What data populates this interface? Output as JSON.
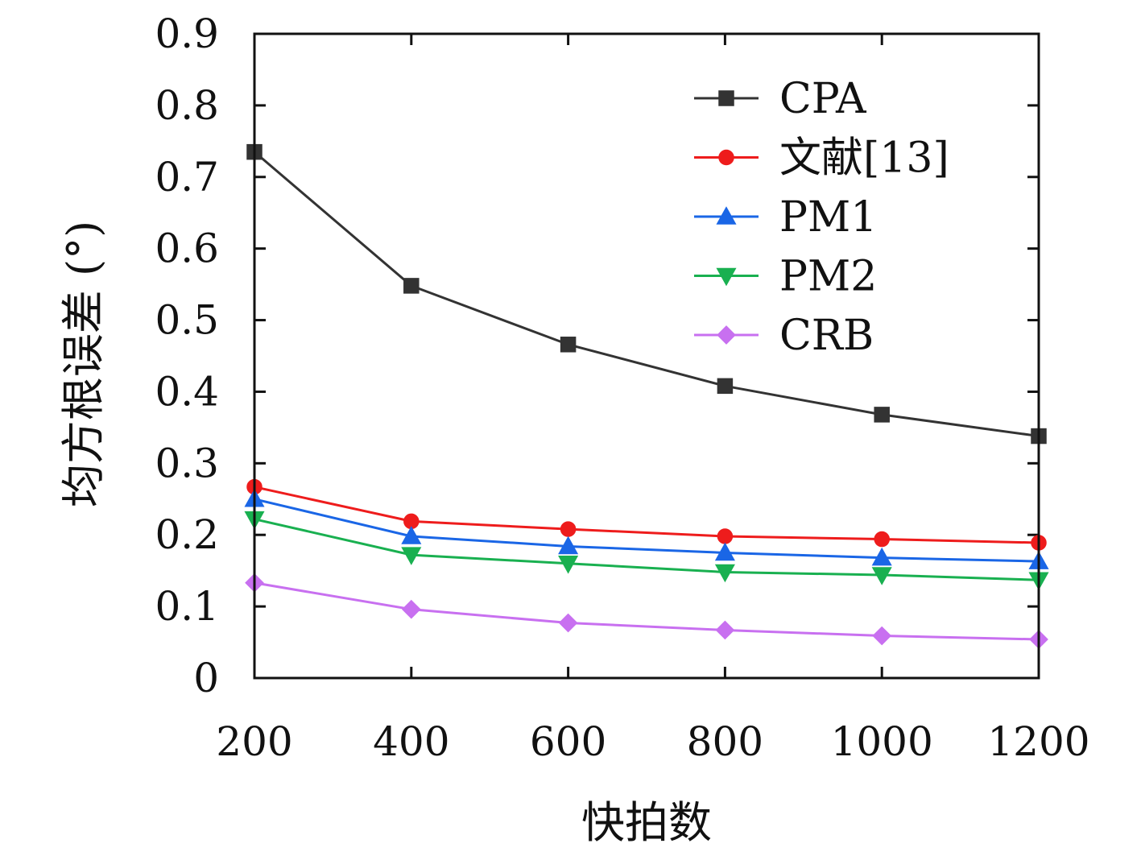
{
  "chart_data": {
    "type": "line",
    "xlabel": "快拍数",
    "ylabel": "均方根误差 (°)",
    "x": [
      200,
      400,
      600,
      800,
      1000,
      1200
    ],
    "xlim": [
      200,
      1200
    ],
    "ylim": [
      0,
      0.9
    ],
    "xticks": [
      "200",
      "400",
      "600",
      "800",
      "1000",
      "1200"
    ],
    "yticks": [
      "0",
      "0.1",
      "0.2",
      "0.3",
      "0.4",
      "0.5",
      "0.6",
      "0.7",
      "0.8",
      "0.9"
    ],
    "grid": false,
    "legend_position": "top-right",
    "series": [
      {
        "name": "CPA",
        "marker": "square",
        "color": "#333333",
        "values": [
          0.735,
          0.548,
          0.466,
          0.408,
          0.368,
          0.338
        ]
      },
      {
        "name": "文献[13]",
        "marker": "circle",
        "color": "#ee1c1c",
        "values": [
          0.267,
          0.219,
          0.208,
          0.198,
          0.194,
          0.189
        ]
      },
      {
        "name": "PM1",
        "marker": "triangle-up",
        "color": "#1a66e6",
        "values": [
          0.25,
          0.198,
          0.184,
          0.175,
          0.168,
          0.163
        ]
      },
      {
        "name": "PM2",
        "marker": "triangle-down",
        "color": "#19b050",
        "values": [
          0.222,
          0.172,
          0.16,
          0.148,
          0.144,
          0.137
        ]
      },
      {
        "name": "CRB",
        "marker": "diamond",
        "color": "#c870f0",
        "values": [
          0.133,
          0.096,
          0.077,
          0.067,
          0.059,
          0.054
        ]
      }
    ]
  }
}
